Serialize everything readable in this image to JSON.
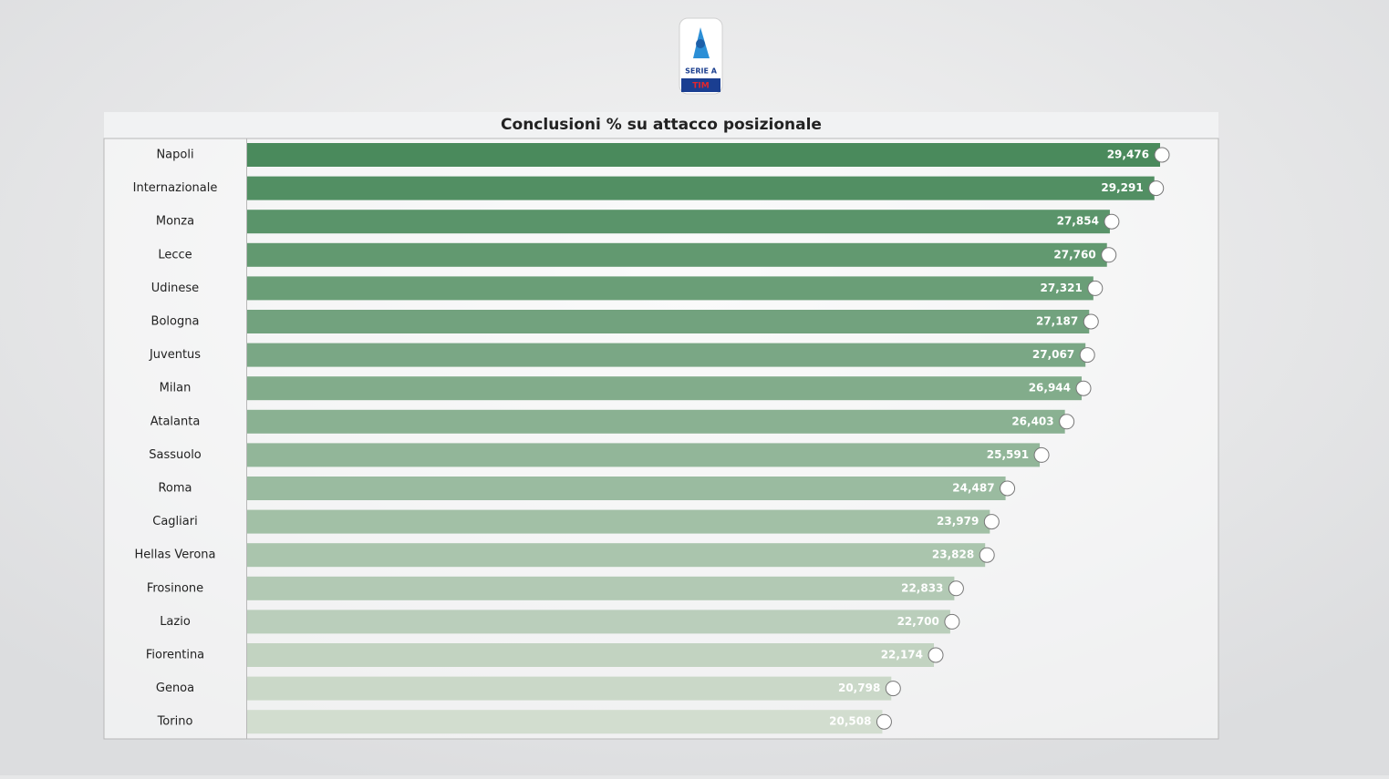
{
  "brand": {
    "line1": "SERIE A",
    "line2": "TIM"
  },
  "chart_data": {
    "type": "barh",
    "title": "Conclusioni % su attacco posizionale",
    "categories": [
      "Napoli",
      "Internazionale",
      "Monza",
      "Lecce",
      "Udinese",
      "Bologna",
      "Juventus",
      "Milan",
      "Atalanta",
      "Sassuolo",
      "Roma",
      "Cagliari",
      "Hellas Verona",
      "Frosinone",
      "Lazio",
      "Fiorentina",
      "Genoa",
      "Torino"
    ],
    "values": [
      29.476,
      29.291,
      27.854,
      27.76,
      27.321,
      27.187,
      27.067,
      26.944,
      26.403,
      25.591,
      24.487,
      23.979,
      23.828,
      22.833,
      22.7,
      22.174,
      20.798,
      20.508
    ],
    "value_labels": [
      "29,476",
      "29,291",
      "27,854",
      "27,760",
      "27,321",
      "27,187",
      "27,067",
      "26,944",
      "26,403",
      "25,591",
      "24,487",
      "23,979",
      "23,828",
      "22,833",
      "22,700",
      "22,174",
      "20,798",
      "20,508"
    ],
    "color_range": [
      "#4a8a5c",
      "#d2ddcf"
    ]
  }
}
